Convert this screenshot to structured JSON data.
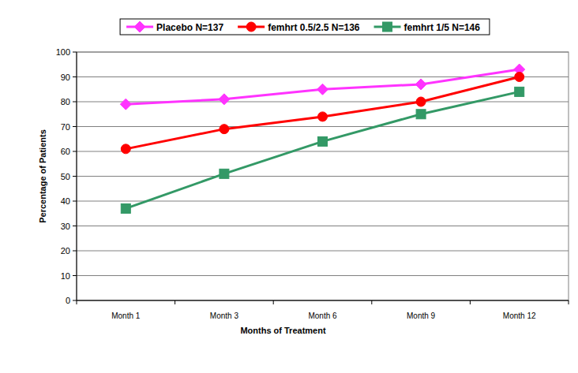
{
  "chart_data": {
    "type": "line",
    "x_label": "Months of Treatment",
    "y_label": "Percentage of Patients",
    "categories": [
      "Month 1",
      "Month 3",
      "Month 6",
      "Month 9",
      "Month 12"
    ],
    "series": [
      {
        "name": "Placebo N=137",
        "color": "#ff33ff",
        "marker": "diamond",
        "values": [
          79,
          81,
          85,
          87,
          93
        ]
      },
      {
        "name": "femhrt 0.5/2.5  N=136",
        "color": "#ff0000",
        "marker": "circle",
        "values": [
          61,
          69,
          74,
          80,
          90
        ]
      },
      {
        "name": "femhrt 1/5  N=146",
        "color": "#339966",
        "marker": "square",
        "values": [
          37,
          51,
          64,
          75,
          84
        ]
      }
    ],
    "ylim": [
      0,
      100
    ],
    "yticks": [
      0,
      10,
      20,
      30,
      40,
      50,
      60,
      70,
      80,
      90,
      100
    ],
    "grid": true,
    "legend": "top"
  }
}
